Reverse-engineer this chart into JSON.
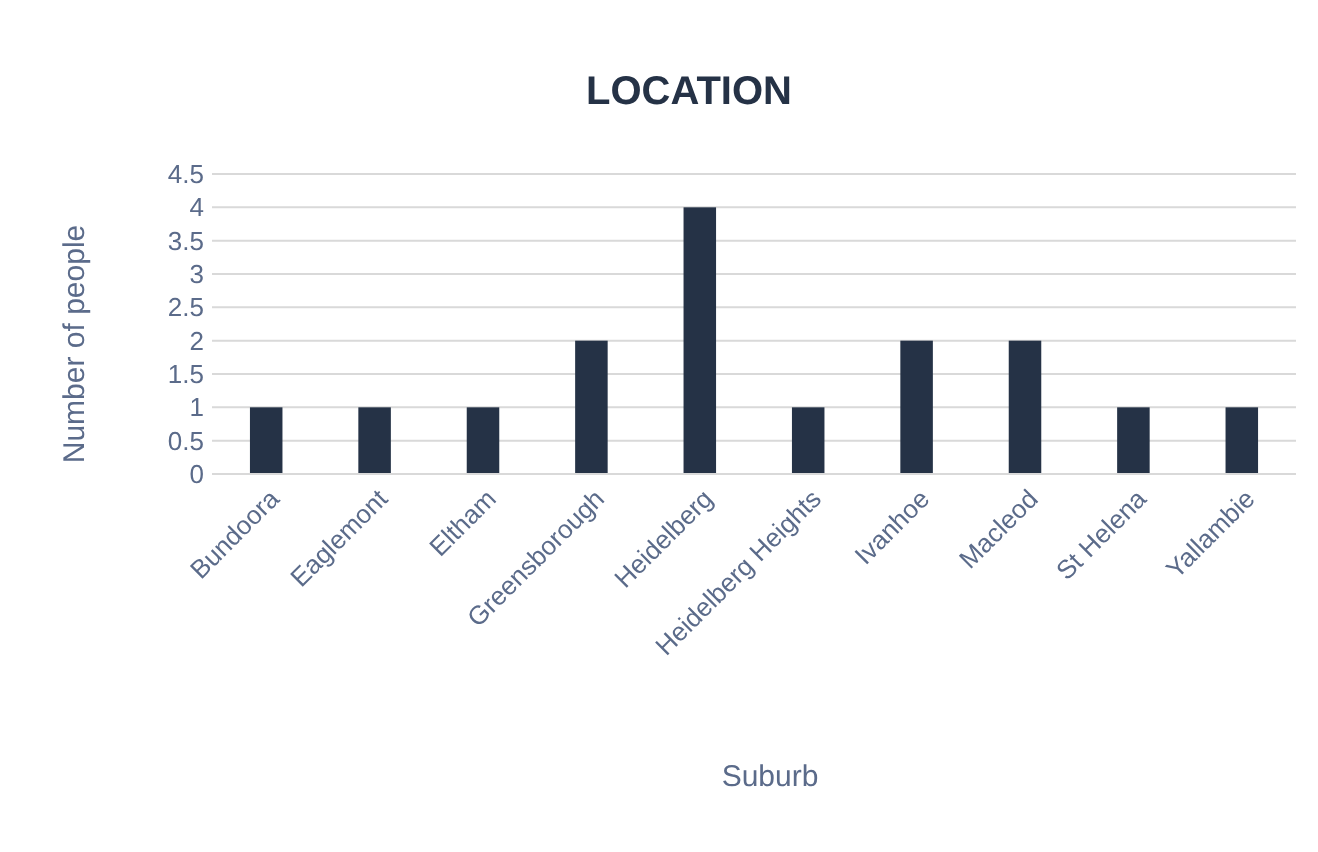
{
  "chart_data": {
    "type": "bar",
    "title": "LOCATION",
    "xlabel": "Suburb",
    "ylabel": "Number of people",
    "categories": [
      "Bundoora",
      "Eaglemont",
      "Eltham",
      "Greensborough",
      "Heidelberg",
      "Heidelberg Heights",
      "Ivanhoe",
      "Macleod",
      "St Helena",
      "Yallambie"
    ],
    "values": [
      1,
      1,
      1,
      2,
      4,
      1,
      2,
      2,
      1,
      1
    ],
    "color": "#253246",
    "ylim": [
      0,
      4.5
    ],
    "yticks": [
      0,
      0.5,
      1,
      1.5,
      2,
      2.5,
      3,
      3.5,
      4,
      4.5
    ],
    "grid": "y"
  }
}
